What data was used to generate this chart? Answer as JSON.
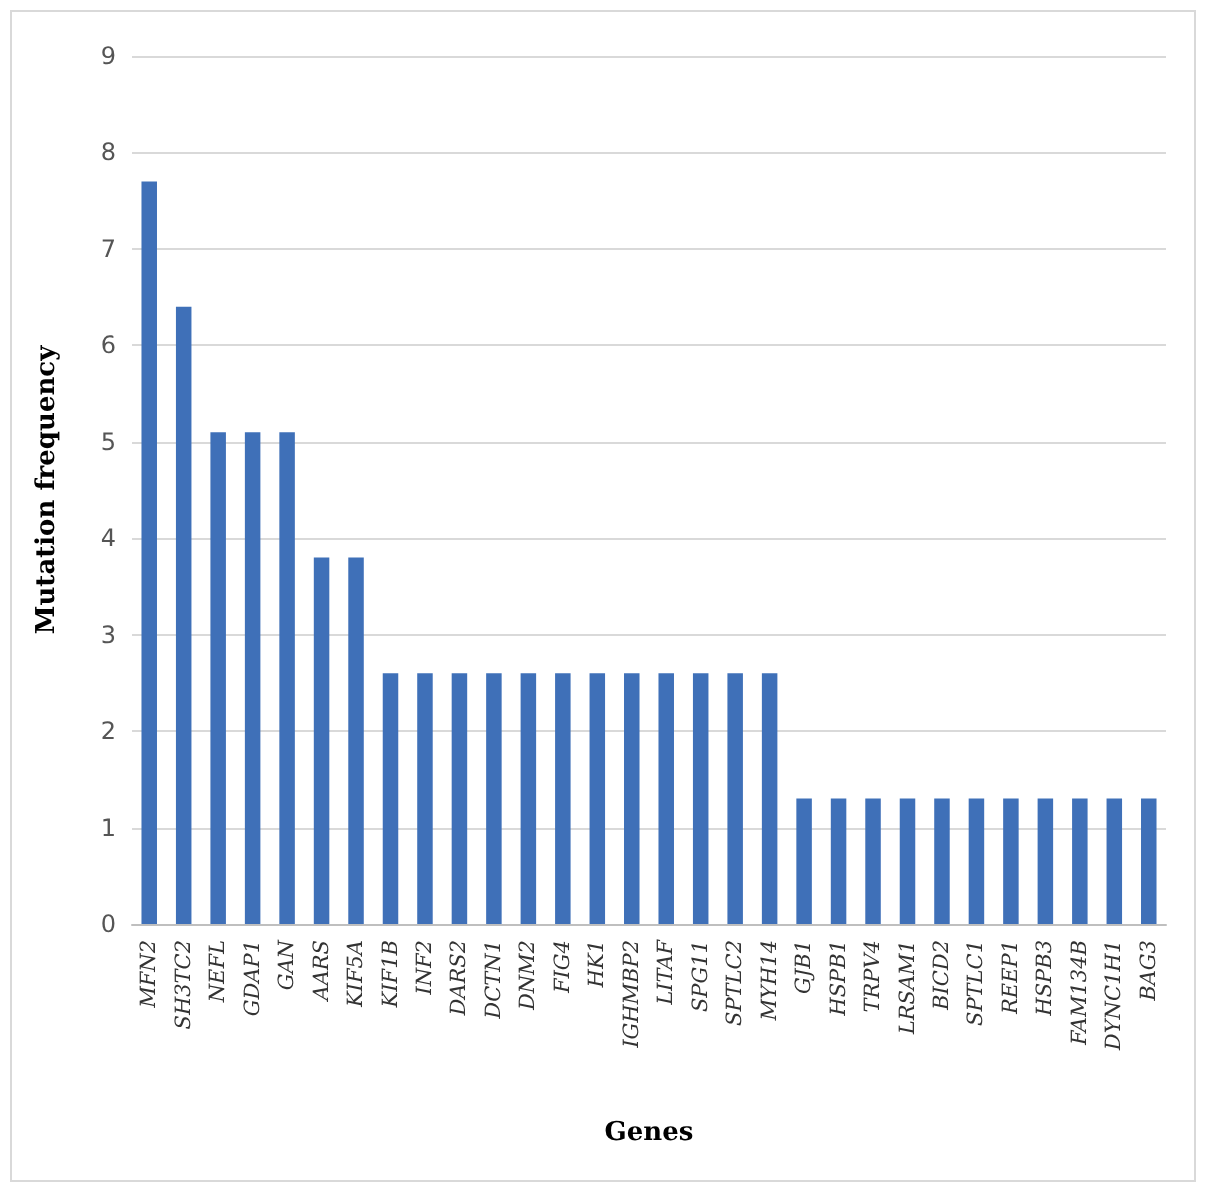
{
  "chart_data": {
    "type": "bar",
    "xlabel": "Genes",
    "ylabel": "Mutation frequency",
    "categories": [
      "MFN2",
      "SH3TC2",
      "NEFL",
      "GDAP1",
      "GAN",
      "AARS",
      "KIF5A",
      "KIF1B",
      "INF2",
      "DARS2",
      "DCTN1",
      "DNM2",
      "FIG4",
      "HK1",
      "IGHMBP2",
      "LITAF",
      "SPG11",
      "SPTLC2",
      "MYH14",
      "GJB1",
      "HSPB1",
      "TRPV4",
      "LRSAM1",
      "BICD2",
      "SPTLC1",
      "REEP1",
      "HSPB3",
      "FAM134B",
      "DYNC1H1",
      "BAG3"
    ],
    "values": [
      7.7,
      6.4,
      5.1,
      5.1,
      5.1,
      3.8,
      3.8,
      2.6,
      2.6,
      2.6,
      2.6,
      2.6,
      2.6,
      2.6,
      2.6,
      2.6,
      2.6,
      2.6,
      2.6,
      1.3,
      1.3,
      1.3,
      1.3,
      1.3,
      1.3,
      1.3,
      1.3,
      1.3,
      1.3,
      1.3
    ],
    "color": "#3f70b8",
    "ylim": [
      0,
      9
    ],
    "yticks": [
      0,
      1,
      2,
      3,
      4,
      5,
      6,
      7,
      8,
      9
    ],
    "grid": "y"
  }
}
